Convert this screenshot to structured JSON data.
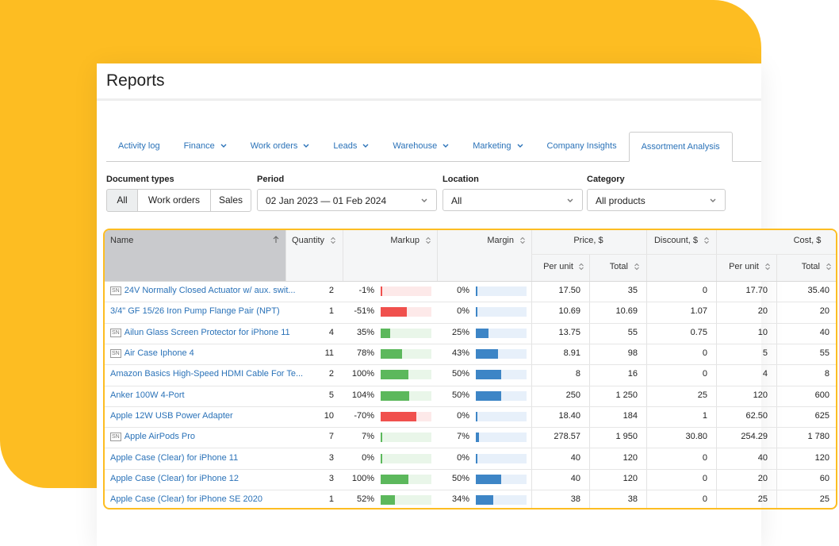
{
  "header": {
    "title": "Reports"
  },
  "tabs": [
    {
      "label": "Activity log"
    },
    {
      "label": "Finance",
      "has_menu": true
    },
    {
      "label": "Work orders",
      "has_menu": true
    },
    {
      "label": "Leads",
      "has_menu": true
    },
    {
      "label": "Warehouse",
      "has_menu": true
    },
    {
      "label": "Marketing",
      "has_menu": true
    },
    {
      "label": "Company Insights"
    },
    {
      "label": "Assortment Analysis",
      "active": true
    }
  ],
  "filters": {
    "document_types": {
      "label": "Document types",
      "options": [
        "All",
        "Work orders",
        "Sales"
      ],
      "selected": 0
    },
    "period": {
      "label": "Period",
      "value": "02 Jan 2023 — 01 Feb 2024"
    },
    "location": {
      "label": "Location",
      "value": "All"
    },
    "category": {
      "label": "Category",
      "value": "All products"
    }
  },
  "table": {
    "headers": {
      "name": "Name",
      "quantity": "Quantity",
      "markup": "Markup",
      "margin": "Margin",
      "price": "Price, $",
      "price_per_unit": "Per unit",
      "price_total": "Total",
      "discount": "Discount, $",
      "cost": "Cost, $",
      "cost_per_unit": "Per unit",
      "cost_total": "Total"
    },
    "rows": [
      {
        "sn": "SN",
        "name": "24V Normally Closed Actuator w/ aux. swit...",
        "quantity": "2",
        "markup": {
          "value": -1,
          "label": "-1%"
        },
        "margin": {
          "value": 0,
          "label": "0%"
        },
        "price_per_unit": "17.50",
        "price_total": "35",
        "discount": "0",
        "cost_per_unit": "17.70",
        "cost_total": "35.40"
      },
      {
        "name": "3/4\" GF 15/26 Iron Pump Flange Pair (NPT)",
        "quantity": "1",
        "markup": {
          "value": -51,
          "label": "-51%"
        },
        "margin": {
          "value": 0,
          "label": "0%"
        },
        "price_per_unit": "10.69",
        "price_total": "10.69",
        "discount": "1.07",
        "cost_per_unit": "20",
        "cost_total": "20"
      },
      {
        "sn": "SN",
        "name": "Ailun Glass Screen Protector for iPhone 11",
        "quantity": "4",
        "markup": {
          "value": 35,
          "label": "35%"
        },
        "margin": {
          "value": 25,
          "label": "25%"
        },
        "price_per_unit": "13.75",
        "price_total": "55",
        "discount": "0.75",
        "cost_per_unit": "10",
        "cost_total": "40"
      },
      {
        "sn": "SN",
        "name": "Air Case Iphone 4",
        "quantity": "11",
        "markup": {
          "value": 78,
          "label": "78%"
        },
        "margin": {
          "value": 43,
          "label": "43%"
        },
        "price_per_unit": "8.91",
        "price_total": "98",
        "discount": "0",
        "cost_per_unit": "5",
        "cost_total": "55"
      },
      {
        "name": "Amazon Basics High-Speed HDMI Cable For Te...",
        "quantity": "2",
        "markup": {
          "value": 100,
          "label": "100%"
        },
        "margin": {
          "value": 50,
          "label": "50%"
        },
        "price_per_unit": "8",
        "price_total": "16",
        "discount": "0",
        "cost_per_unit": "4",
        "cost_total": "8"
      },
      {
        "name": "Anker 100W 4-Port",
        "quantity": "5",
        "markup": {
          "value": 104,
          "label": "104%"
        },
        "margin": {
          "value": 50,
          "label": "50%"
        },
        "price_per_unit": "250",
        "price_total": "1 250",
        "discount": "25",
        "cost_per_unit": "120",
        "cost_total": "600"
      },
      {
        "name": "Apple 12W USB Power Adapter",
        "quantity": "10",
        "markup": {
          "value": -70,
          "label": "-70%"
        },
        "margin": {
          "value": 0,
          "label": "0%"
        },
        "price_per_unit": "18.40",
        "price_total": "184",
        "discount": "1",
        "cost_per_unit": "62.50",
        "cost_total": "625"
      },
      {
        "sn": "SN",
        "name": "Apple AirPods Pro",
        "quantity": "7",
        "markup": {
          "value": 7,
          "label": "7%"
        },
        "margin": {
          "value": 7,
          "label": "7%"
        },
        "price_per_unit": "278.57",
        "price_total": "1 950",
        "discount": "30.80",
        "cost_per_unit": "254.29",
        "cost_total": "1 780"
      },
      {
        "name": "Apple Case (Clear) for iPhone 11",
        "quantity": "3",
        "markup": {
          "value": 0,
          "label": "0%"
        },
        "margin": {
          "value": 0,
          "label": "0%"
        },
        "price_per_unit": "40",
        "price_total": "120",
        "discount": "0",
        "cost_per_unit": "40",
        "cost_total": "120"
      },
      {
        "name": "Apple Case (Clear) for iPhone 12",
        "quantity": "3",
        "markup": {
          "value": 100,
          "label": "100%"
        },
        "margin": {
          "value": 50,
          "label": "50%"
        },
        "price_per_unit": "40",
        "price_total": "120",
        "discount": "0",
        "cost_per_unit": "20",
        "cost_total": "60"
      },
      {
        "name": "Apple Case (Clear) for iPhone SE 2020",
        "quantity": "1",
        "markup": {
          "value": 52,
          "label": "52%"
        },
        "margin": {
          "value": 34,
          "label": "34%"
        },
        "price_per_unit": "38",
        "price_total": "38",
        "discount": "0",
        "cost_per_unit": "25",
        "cost_total": "25"
      }
    ]
  }
}
